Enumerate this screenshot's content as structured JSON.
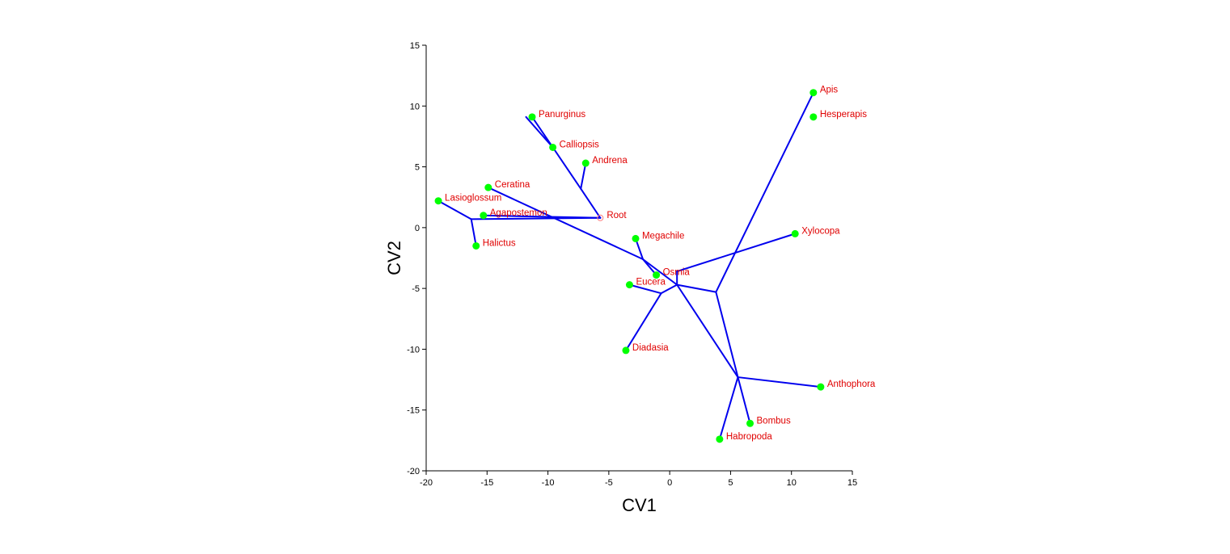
{
  "chart_data": {
    "type": "scatter",
    "title": "",
    "xlabel": "CV1",
    "ylabel": "CV2",
    "xlim": [
      -20,
      15
    ],
    "ylim": [
      -20,
      15
    ],
    "xticks": [
      -20,
      -15,
      -10,
      -5,
      0,
      5,
      10,
      15
    ],
    "yticks": [
      -20,
      -15,
      -10,
      -5,
      0,
      5,
      10,
      15
    ],
    "grid": false,
    "colors": {
      "points": "#00ff00",
      "labels": "#e00000",
      "edges": "#0000ee",
      "axes": "#000000",
      "root": "#ff8080"
    },
    "points": [
      {
        "name": "Apis",
        "x": 11.8,
        "y": 11.1
      },
      {
        "name": "Hesperapis",
        "x": 11.8,
        "y": 9.1
      },
      {
        "name": "Panurginus",
        "x": -11.3,
        "y": 9.1
      },
      {
        "name": "Calliopsis",
        "x": -9.6,
        "y": 6.6
      },
      {
        "name": "Andrena",
        "x": -6.9,
        "y": 5.3
      },
      {
        "name": "Ceratina",
        "x": -14.9,
        "y": 3.3
      },
      {
        "name": "Lasioglossum",
        "x": -19.0,
        "y": 2.2
      },
      {
        "name": "Agapostemon",
        "x": -15.3,
        "y": 1.0
      },
      {
        "name": "Halictus",
        "x": -15.9,
        "y": -1.5
      },
      {
        "name": "Megachile",
        "x": -2.8,
        "y": -0.9
      },
      {
        "name": "Xylocopa",
        "x": 10.3,
        "y": -0.5
      },
      {
        "name": "Osmia",
        "x": -1.1,
        "y": -3.9
      },
      {
        "name": "Eucera",
        "x": -3.3,
        "y": -4.7
      },
      {
        "name": "Diadasia",
        "x": -3.6,
        "y": -10.1
      },
      {
        "name": "Anthophora",
        "x": 12.4,
        "y": -13.1
      },
      {
        "name": "Bombus",
        "x": 6.6,
        "y": -16.1
      },
      {
        "name": "Habropoda",
        "x": 4.1,
        "y": -17.4
      }
    ],
    "root": {
      "name": "Root",
      "x": -5.7,
      "y": 0.8
    },
    "edges": [
      [
        -5.7,
        0.8,
        -16.3,
        0.7
      ],
      [
        -16.3,
        0.7,
        -19.0,
        2.2
      ],
      [
        -16.3,
        0.7,
        -15.9,
        -1.5
      ],
      [
        -5.7,
        0.8,
        -15.3,
        1.0
      ],
      [
        -5.7,
        0.8,
        -7.3,
        3.2
      ],
      [
        -7.3,
        3.2,
        -6.9,
        5.3
      ],
      [
        -7.3,
        3.2,
        -9.6,
        6.6
      ],
      [
        -9.6,
        6.6,
        -11.8,
        9.1
      ],
      [
        -9.6,
        6.6,
        -11.3,
        9.1
      ],
      [
        -14.9,
        3.3,
        -2.2,
        -2.6
      ],
      [
        -2.2,
        -2.6,
        -2.8,
        -0.9
      ],
      [
        -2.2,
        -2.6,
        -1.1,
        -3.9
      ],
      [
        -2.2,
        -2.6,
        0.6,
        -4.7
      ],
      [
        0.6,
        -4.7,
        0.6,
        -3.6
      ],
      [
        0.6,
        -3.6,
        10.3,
        -0.5
      ],
      [
        0.6,
        -4.7,
        -0.7,
        -5.4
      ],
      [
        -0.7,
        -5.4,
        -3.3,
        -4.7
      ],
      [
        -0.7,
        -5.4,
        -3.6,
        -10.1
      ],
      [
        0.6,
        -4.7,
        3.8,
        -5.3
      ],
      [
        3.8,
        -5.3,
        11.8,
        11.1
      ],
      [
        3.8,
        -5.3,
        5.6,
        -12.3
      ],
      [
        0.6,
        -4.7,
        5.6,
        -12.3
      ],
      [
        5.6,
        -12.3,
        12.4,
        -13.1
      ],
      [
        5.6,
        -12.3,
        6.6,
        -16.1
      ],
      [
        5.6,
        -12.3,
        4.1,
        -17.4
      ]
    ]
  }
}
